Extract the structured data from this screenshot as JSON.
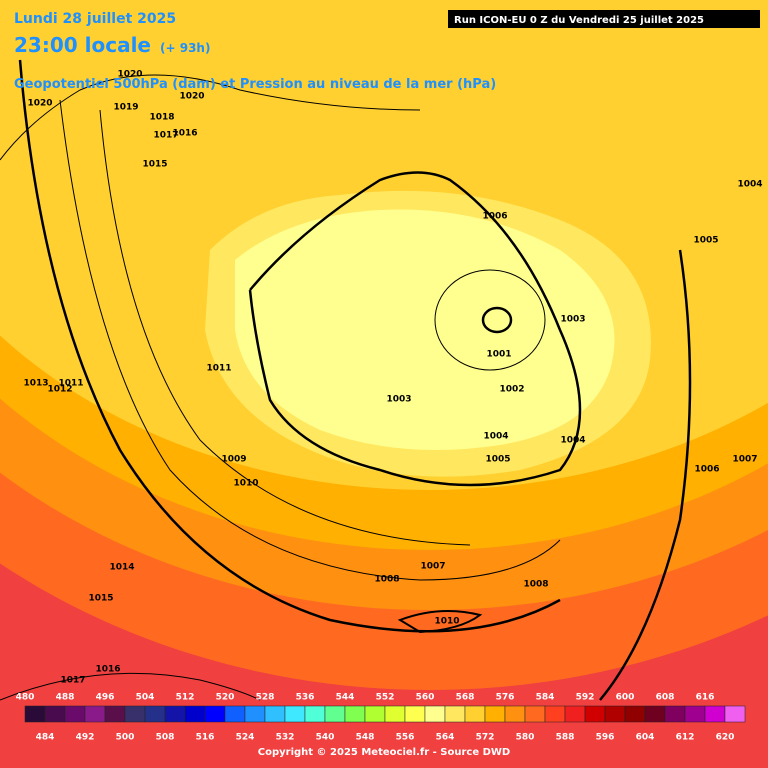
{
  "header": {
    "date": "Lundi 28 juillet 2025",
    "time": "23:00 locale",
    "lead": "(+ 93h)",
    "subtitle": "Geopotentiel 500hPa (dam) et Pression au niveau de la mer (hPa)",
    "run": "Run ICON-EU 0 Z du Vendredi 25 juillet 2025"
  },
  "isobar_labels": [
    "1020",
    "1020",
    "1019",
    "1018",
    "1017",
    "1016",
    "1020",
    "1015",
    "1004",
    "1006",
    "1005",
    "1003",
    "1001",
    "1002",
    "1003",
    "1013",
    "1011",
    "1012",
    "1011",
    "1004",
    "1004",
    "1005",
    "1009",
    "1010",
    "1006",
    "1007",
    "1014",
    "1015",
    "1008",
    "1007",
    "1008",
    "1010",
    "1016",
    "1017"
  ],
  "scale": {
    "levels": [
      480,
      484,
      488,
      492,
      496,
      500,
      504,
      508,
      512,
      516,
      520,
      524,
      528,
      532,
      536,
      540,
      544,
      548,
      552,
      556,
      560,
      564,
      568,
      572,
      576,
      580,
      584,
      588,
      592,
      596,
      600,
      604,
      608,
      612,
      616,
      620
    ],
    "colors": [
      "#2a0a36",
      "#4a0a4e",
      "#6a0a6a",
      "#8a1a8a",
      "#5a0f4a",
      "#38306a",
      "#24308a",
      "#1414a8",
      "#0000cc",
      "#0000ff",
      "#1060ff",
      "#2090ff",
      "#30c0ff",
      "#40e8ff",
      "#50ffd8",
      "#60ff90",
      "#80ff50",
      "#b0ff30",
      "#e0ff30",
      "#ffff50",
      "#ffff90",
      "#ffe860",
      "#ffd030",
      "#ffb000",
      "#ff9010",
      "#ff6a20",
      "#ff4020",
      "#f02020",
      "#d00000",
      "#b00000",
      "#900000",
      "#700020",
      "#800060",
      "#a00090",
      "#d000d0",
      "#f060f0"
    ]
  },
  "footer": "Copyright © 2025 Meteociel.fr - Source DWD"
}
